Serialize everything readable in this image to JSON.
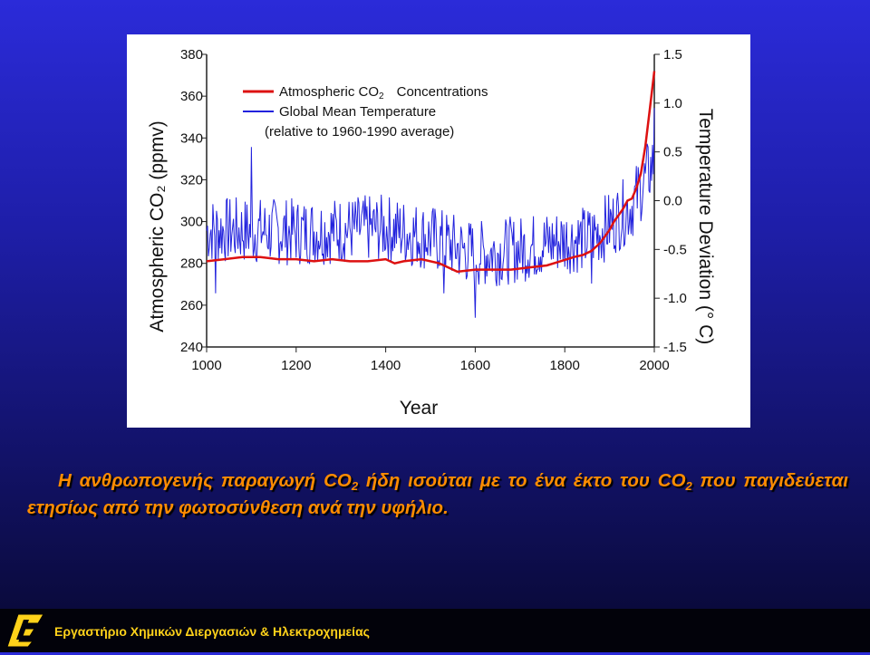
{
  "chart_data": {
    "type": "line",
    "xlabel": "Year",
    "ylabel_left": "Atmospheric CO₂ (ppmv)",
    "ylabel_right": "Temperature Deviation (° C)",
    "xlim": [
      1000,
      2000
    ],
    "ylim_left": [
      240,
      380
    ],
    "ylim_right": [
      -1.5,
      1.5
    ],
    "x_ticks": [
      "1000",
      "1200",
      "1400",
      "1600",
      "1800",
      "2000"
    ],
    "y_ticks_left": [
      "380",
      "360",
      "340",
      "320",
      "300",
      "280",
      "260",
      "240"
    ],
    "y_ticks_right": [
      "1.5",
      "1.0",
      "0.5",
      "0.0",
      "-0.5",
      "-1.0",
      "-1.5"
    ],
    "legend": [
      {
        "label": "Atmospheric CO",
        "sub": "2",
        "suffix": "Concentrations",
        "color": "#dd1111"
      },
      {
        "label": "Global Mean Temperature",
        "color": "#2222dd"
      },
      {
        "label": "(relative to 1960-1990 average)"
      }
    ],
    "series": [
      {
        "name": "Atmospheric CO2 Concentrations",
        "axis": "left",
        "color": "#dd1111",
        "x": [
          1000,
          1040,
          1080,
          1120,
          1160,
          1200,
          1240,
          1280,
          1320,
          1360,
          1400,
          1420,
          1440,
          1480,
          1520,
          1560,
          1600,
          1640,
          1680,
          1720,
          1760,
          1790,
          1820,
          1840,
          1860,
          1880,
          1900,
          1910,
          1920,
          1930,
          1940,
          1950,
          1960,
          1970,
          1980,
          1990,
          2000
        ],
        "values": [
          281,
          282,
          283,
          283,
          282,
          282,
          281,
          282,
          281,
          281,
          282,
          280,
          281,
          282,
          280,
          276,
          277,
          277,
          277,
          278,
          279,
          281,
          283,
          284,
          286,
          290,
          296,
          300,
          303,
          306,
          310,
          311,
          316,
          323,
          336,
          354,
          372
        ]
      },
      {
        "name": "Global Mean Temperature",
        "axis": "right",
        "color": "#2222dd",
        "x_start": 1000,
        "x_end": 2000,
        "baseline": [
          [
            1000,
            -0.3
          ],
          [
            1200,
            -0.32
          ],
          [
            1400,
            -0.28
          ],
          [
            1500,
            -0.38
          ],
          [
            1600,
            -0.55
          ],
          [
            1700,
            -0.5
          ],
          [
            1800,
            -0.4
          ],
          [
            1850,
            -0.4
          ],
          [
            1900,
            -0.25
          ],
          [
            1950,
            -0.05
          ],
          [
            2000,
            0.4
          ]
        ],
        "peaks": [
          [
            1100,
            0.55
          ],
          [
            1600,
            -1.2
          ],
          [
            1530,
            -0.95
          ],
          [
            1020,
            -0.95
          ],
          [
            1860,
            -0.85
          ],
          [
            2000,
            0.95
          ]
        ]
      }
    ]
  },
  "caption": {
    "t1": "Η ανθρωπογενής παραγωγή CO",
    "t1sub": "2",
    "t2": " ήδη ισούται με το ένα έκτο του CO",
    "t2sub": "2",
    "t3": " που παγιδεύεται ετησίως από την φωτοσύνθεση ανά την υφήλιο."
  },
  "footer": {
    "text": "Εργαστήριο Χημικών Διεργασιών & Ηλεκτροχημείας",
    "logo_icon": "lab-logo-icon",
    "logo_color": "#ffd21a"
  }
}
